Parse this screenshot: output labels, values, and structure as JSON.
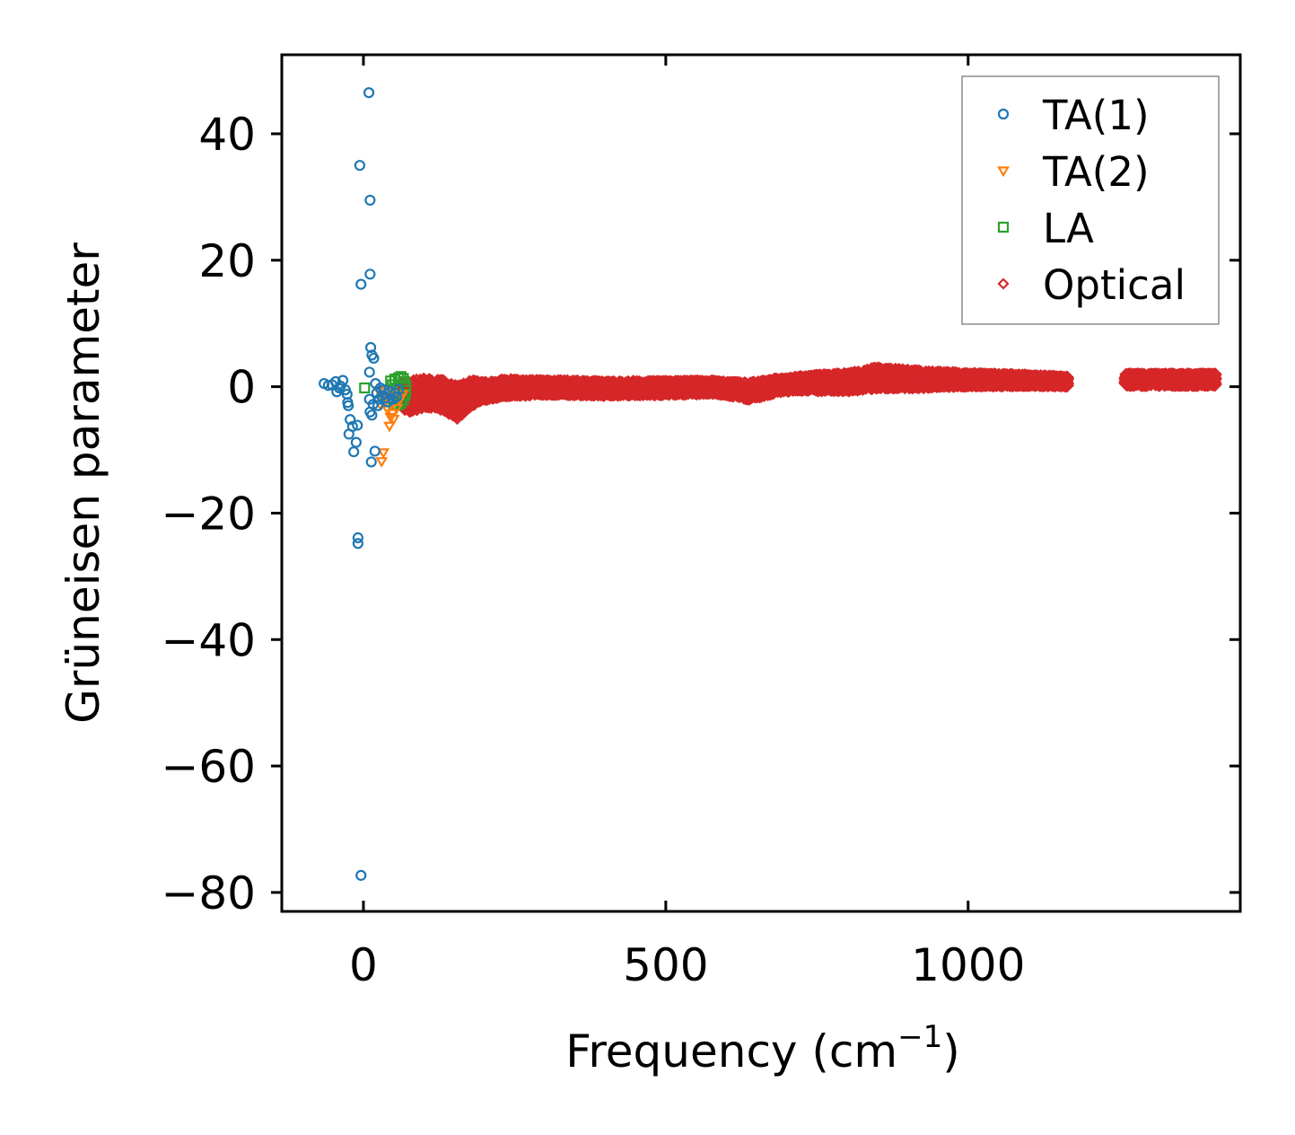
{
  "chart_data": {
    "type": "scatter",
    "title": "",
    "xlabel": "Frequency (cm",
    "xlabel_sup": "−1",
    "xlabel_close": ")",
    "ylabel": "Grüneisen parameter",
    "xlim": [
      -135,
      1450
    ],
    "ylim": [
      -83,
      52.5
    ],
    "x_ticks": [
      0,
      500,
      1000
    ],
    "x_tick_labels": [
      "0",
      "500",
      "1000"
    ],
    "y_ticks": [
      40,
      20,
      0,
      -20,
      -40,
      -60,
      -80
    ],
    "y_tick_labels": [
      "40",
      "20",
      "0",
      "−20",
      "−40",
      "−60",
      "−80"
    ],
    "grid": false,
    "legend_position": "upper right",
    "series": [
      {
        "name": "TA(1)",
        "color": "#1f77b4",
        "marker": "circle",
        "points": [
          [
            9,
            46.5
          ],
          [
            -6,
            35
          ],
          [
            11,
            29.5
          ],
          [
            11,
            17.8
          ],
          [
            -4,
            16.2
          ],
          [
            12,
            6.2
          ],
          [
            14,
            5.0
          ],
          [
            17,
            4.5
          ],
          [
            10,
            2.3
          ],
          [
            -65,
            0.5
          ],
          [
            -58,
            0.2
          ],
          [
            -52,
            0.3
          ],
          [
            -46,
            0.8
          ],
          [
            -40,
            -0.2
          ],
          [
            -34,
            1.0
          ],
          [
            -30,
            -0.5
          ],
          [
            -44,
            -0.8
          ],
          [
            -38,
            0.1
          ],
          [
            -27,
            -1.2
          ],
          [
            -26,
            -2.5
          ],
          [
            -25,
            -3.0
          ],
          [
            -22,
            -5.2
          ],
          [
            -18,
            -6.3
          ],
          [
            -24,
            -7.5
          ],
          [
            -10,
            -6.1
          ],
          [
            -12,
            -8.8
          ],
          [
            -16,
            -10.3
          ],
          [
            19,
            -10.2
          ],
          [
            13,
            -11.9
          ],
          [
            14,
            -4.5
          ],
          [
            11,
            -4.0
          ],
          [
            10,
            -2.0
          ],
          [
            16,
            -2.8
          ],
          [
            20,
            0.5
          ],
          [
            22,
            -1.0
          ],
          [
            26,
            -2.0
          ],
          [
            30,
            -1.5
          ],
          [
            34,
            -0.5
          ],
          [
            37,
            -1.8
          ],
          [
            40,
            -2.4
          ],
          [
            44,
            -0.8
          ],
          [
            48,
            -2.0
          ],
          [
            52,
            -1.0
          ],
          [
            55,
            -1.6
          ],
          [
            58,
            -0.4
          ],
          [
            24,
            -3.0
          ],
          [
            28,
            -0.2
          ],
          [
            -9,
            -23.9
          ],
          [
            -9,
            -24.8
          ],
          [
            -4,
            -77.3
          ]
        ]
      },
      {
        "name": "TA(2)",
        "color": "#ff7f0e",
        "marker": "triangle-down",
        "points": [
          [
            33,
            -10.4
          ],
          [
            30,
            -11.8
          ],
          [
            43,
            -6.2
          ],
          [
            45,
            -4.8
          ],
          [
            48,
            -4.2
          ],
          [
            50,
            -5.1
          ],
          [
            55,
            -3.4
          ],
          [
            40,
            -3.6
          ],
          [
            36,
            -2.4
          ],
          [
            28,
            -2.8
          ],
          [
            60,
            -2.0
          ],
          [
            38,
            -1.5
          ],
          [
            47,
            -0.8
          ],
          [
            58,
            -1.8
          ],
          [
            65,
            -1.2
          ],
          [
            25,
            -0.6
          ]
        ]
      },
      {
        "name": "LA",
        "color": "#2ca02c",
        "marker": "square",
        "points": [
          [
            2,
            -0.2
          ],
          [
            45,
            0.9
          ],
          [
            52,
            1.2
          ],
          [
            58,
            1.4
          ],
          [
            62,
            1.6
          ],
          [
            66,
            1.3
          ],
          [
            68,
            0.8
          ],
          [
            70,
            0.2
          ],
          [
            70,
            -0.6
          ],
          [
            69,
            -1.4
          ],
          [
            66,
            -2.1
          ],
          [
            62,
            -2.6
          ],
          [
            57,
            -2.9
          ],
          [
            50,
            -2.7
          ],
          [
            44,
            -1.8
          ],
          [
            48,
            0.3
          ],
          [
            55,
            -0.5
          ],
          [
            60,
            -1.2
          ]
        ]
      },
      {
        "name": "Optical",
        "color": "#d62728",
        "marker": "diamond",
        "segments": [
          {
            "from": 65,
            "to": 1165,
            "profile": [
              [
                65,
                -1.8
              ],
              [
                100,
                -1.0
              ],
              [
                130,
                -1.3
              ],
              [
                155,
                -2.4
              ],
              [
                180,
                -1.0
              ],
              [
                230,
                -0.2
              ],
              [
                300,
                -0.1
              ],
              [
                400,
                -0.3
              ],
              [
                500,
                -0.2
              ],
              [
                580,
                -0.1
              ],
              [
                640,
                -0.7
              ],
              [
                680,
                0.1
              ],
              [
                720,
                0.5
              ],
              [
                800,
                0.7
              ],
              [
                850,
                1.4
              ],
              [
                900,
                1.2
              ],
              [
                1000,
                1.1
              ],
              [
                1100,
                1.0
              ],
              [
                1165,
                0.8
              ]
            ],
            "spread": [
              [
                65,
                2.4
              ],
              [
                120,
                2.2
              ],
              [
                155,
                2.6
              ],
              [
                200,
                1.4
              ],
              [
                300,
                1.1
              ],
              [
                600,
                1.0
              ],
              [
                640,
                1.3
              ],
              [
                700,
                1.0
              ],
              [
                850,
                1.6
              ],
              [
                1000,
                1.0
              ],
              [
                1165,
                0.7
              ]
            ]
          },
          {
            "from": 1260,
            "to": 1410,
            "profile": [
              [
                1260,
                1.1
              ],
              [
                1410,
                1.1
              ]
            ],
            "spread": [
              [
                1260,
                0.9
              ],
              [
                1410,
                0.9
              ]
            ]
          }
        ]
      }
    ]
  }
}
